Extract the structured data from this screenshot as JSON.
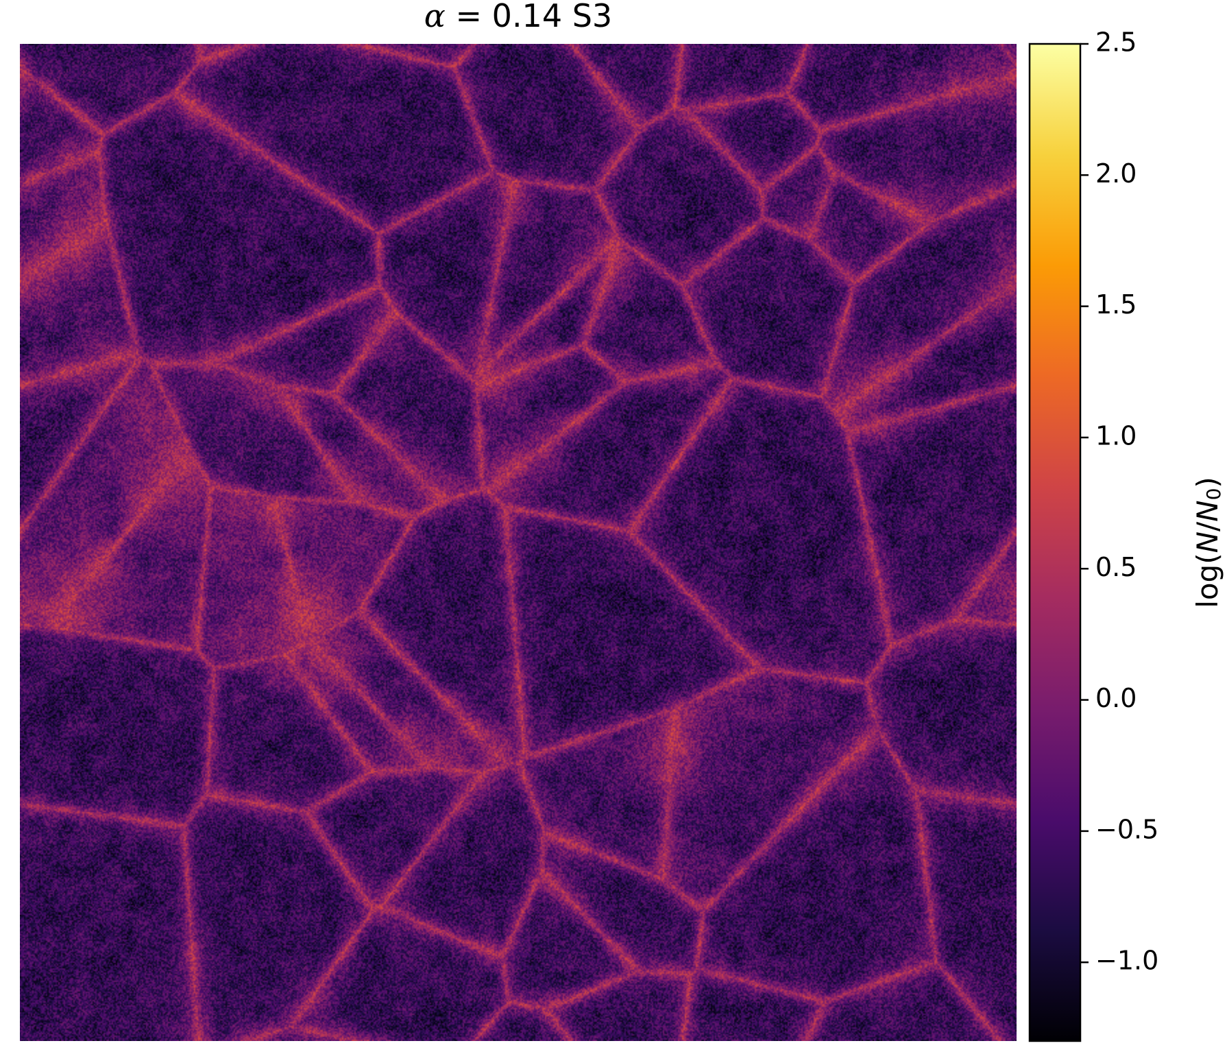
{
  "title": {
    "symbol": "α",
    "equals": " = ",
    "value": "0.14 S3"
  },
  "colors": {
    "colormap": "inferno",
    "stops": [
      "#000004",
      "#1b0c41",
      "#4a0c6b",
      "#781c6d",
      "#a52c60",
      "#cf4446",
      "#ed6925",
      "#fb9b06",
      "#f7d13d",
      "#fcffa4"
    ]
  },
  "chart_data": {
    "type": "heatmap",
    "title": "α = 0.14 S3",
    "xlabel": "",
    "ylabel": "",
    "colorbar": {
      "label": "log(N/N0)",
      "label_display": {
        "main": "log(",
        "var": "N",
        "slash": "/",
        "var2": "N",
        "sub": "0",
        "close": ")"
      },
      "range": [
        -1.3,
        2.5
      ],
      "ticks": [
        -1.0,
        -0.5,
        0.0,
        0.5,
        1.0,
        1.5,
        2.0,
        2.5
      ],
      "tick_labels": [
        "−1.0",
        "−0.5",
        "0.0",
        "0.5",
        "1.0",
        "1.5",
        "2.0",
        "2.5"
      ]
    },
    "description_of_field": "filamentary density field with dark voids and bright orange filaments",
    "typical_value": -0.3
  }
}
